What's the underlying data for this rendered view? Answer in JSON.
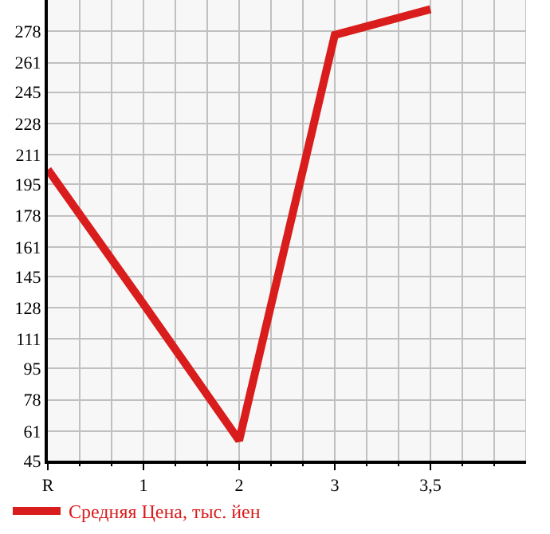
{
  "chart_data": {
    "type": "line",
    "categories": [
      "R",
      "1",
      "2",
      "3",
      "3,5"
    ],
    "series": [
      {
        "name": "Средняя Цена, тыс. йен",
        "color": "#d91c1c",
        "values": [
          203,
          130,
          56,
          276,
          290
        ]
      }
    ],
    "ylim": [
      45,
      295
    ],
    "yticks": [
      45,
      61,
      78,
      95,
      111,
      128,
      145,
      161,
      178,
      195,
      211,
      228,
      245,
      261,
      278
    ],
    "grid": true,
    "legend": "bottom left",
    "marker": "none",
    "line_style": "solid"
  }
}
